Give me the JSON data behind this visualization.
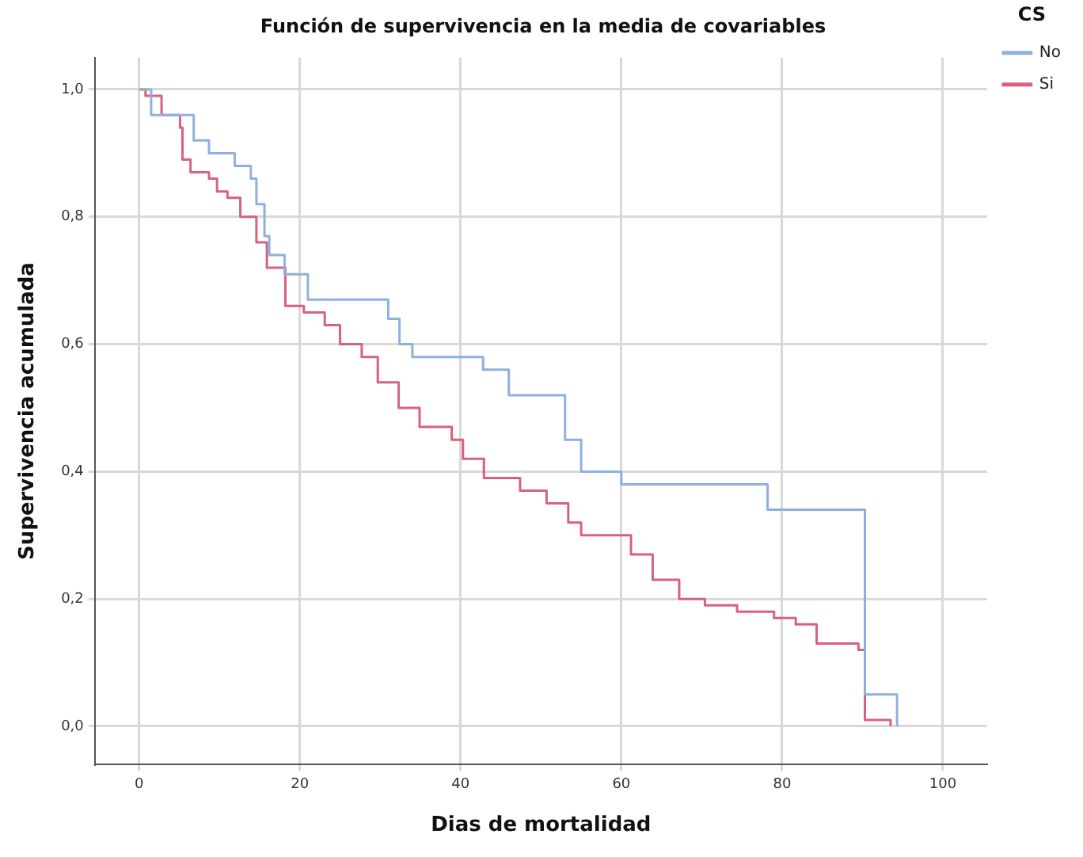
{
  "chart_data": {
    "type": "step",
    "title": "Función de supervivencia en la media de covariables",
    "xlabel": "Dias de mortalidad",
    "ylabel": "Supervivencia acumulada",
    "legend_title": "CS",
    "legend": "top right",
    "xlim": [
      -5.5,
      105.5
    ],
    "xticks": [
      0,
      20,
      40,
      60,
      80,
      100
    ],
    "ylim": [
      -0.06,
      1.05
    ],
    "yticks": [
      {
        "value": 0,
        "label": "0,0"
      },
      {
        "value": 0.2,
        "label": "0,2"
      },
      {
        "value": 0.4,
        "label": "0,4"
      },
      {
        "value": 0.6,
        "label": "0,6"
      },
      {
        "value": 0.8,
        "label": "0,8"
      },
      {
        "value": 1,
        "label": "1,0"
      }
    ],
    "grid": true,
    "marker": "none",
    "line_style": "solid",
    "series": [
      {
        "name": "No",
        "color": "#8fb0dc",
        "x": [
          0,
          1.5,
          6.8,
          8.7,
          11.9,
          13.9,
          14.6,
          15.6,
          16.2,
          18.1,
          21,
          31,
          32.4,
          34,
          42.8,
          46,
          53,
          55,
          60,
          78.2,
          90.3,
          94.3
        ],
        "values": [
          1,
          0.96,
          0.92,
          0.9,
          0.88,
          0.86,
          0.82,
          0.77,
          0.74,
          0.71,
          0.67,
          0.64,
          0.6,
          0.58,
          0.56,
          0.52,
          0.45,
          0.4,
          0.38,
          0.34,
          0.05,
          0
        ]
      },
      {
        "name": "Si",
        "color": "#d9607e",
        "x": [
          0,
          0.8,
          2.8,
          5.1,
          5.4,
          6.4,
          8.7,
          9.7,
          11,
          12.6,
          14.6,
          15.9,
          18.2,
          20.5,
          23.1,
          25,
          27.7,
          29.7,
          32.3,
          34.9,
          38.9,
          40.3,
          42.9,
          47.4,
          50.7,
          53.4,
          55,
          59.3,
          61.2,
          63.9,
          67.2,
          70.4,
          74.4,
          79,
          81.7,
          84.3,
          89.5,
          90.3,
          93.5
        ],
        "values": [
          1,
          0.99,
          0.96,
          0.94,
          0.89,
          0.87,
          0.86,
          0.84,
          0.83,
          0.8,
          0.76,
          0.72,
          0.66,
          0.65,
          0.63,
          0.6,
          0.58,
          0.54,
          0.5,
          0.47,
          0.45,
          0.42,
          0.39,
          0.37,
          0.35,
          0.32,
          0.3,
          0.3,
          0.27,
          0.23,
          0.2,
          0.19,
          0.18,
          0.17,
          0.16,
          0.13,
          0.12,
          0.01,
          0
        ]
      }
    ]
  }
}
